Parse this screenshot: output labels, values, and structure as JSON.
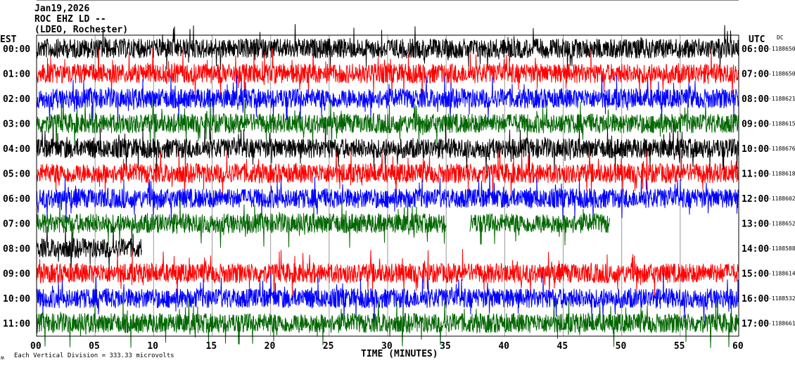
{
  "header": {
    "date": "Jan19,2026",
    "station": "ROC EHZ LD --",
    "location": "(LDEO, Rochester)"
  },
  "left_timezone": "EST",
  "right_timezone": "UTC",
  "dc_header": "DC",
  "footer": {
    "scale_note": "Each Vertical Division =  333.33 microvolts",
    "corner_mark": "ʍ"
  },
  "chart_data": {
    "type": "line",
    "xlabel": "TIME (MINUTES)",
    "xlim": [
      0,
      60
    ],
    "x_ticks": [
      "00",
      "05",
      "10",
      "15",
      "20",
      "25",
      "30",
      "35",
      "40",
      "45",
      "50",
      "55",
      "60"
    ],
    "grid": "vertical lines every 5 minutes",
    "trace_colors": [
      "#000000",
      "#ff0000",
      "#0000ff",
      "#006600"
    ],
    "traces": [
      {
        "est": "00:00",
        "utc": "06:00",
        "dc": "-1188650",
        "end_minute": 60
      },
      {
        "est": "01:00",
        "utc": "07:00",
        "dc": "-1188650",
        "end_minute": 60
      },
      {
        "est": "02:00",
        "utc": "08:00",
        "dc": "-1188621",
        "end_minute": 60
      },
      {
        "est": "03:00",
        "utc": "09:00",
        "dc": "-1188615",
        "end_minute": 60
      },
      {
        "est": "04:00",
        "utc": "10:00",
        "dc": "-1188676",
        "end_minute": 60
      },
      {
        "est": "05:00",
        "utc": "11:00",
        "dc": "-1188618",
        "end_minute": 60
      },
      {
        "est": "06:00",
        "utc": "12:00",
        "dc": "-1188602",
        "end_minute": 60
      },
      {
        "est": "07:00",
        "utc": "13:00",
        "dc": "-1188652",
        "end_minute": 49,
        "gap_minutes": [
          35,
          37
        ]
      },
      {
        "est": "08:00",
        "utc": "14:00",
        "dc": "-1188588",
        "end_minute": 9
      },
      {
        "est": "09:00",
        "utc": "15:00",
        "dc": "-1188614",
        "end_minute": 60
      },
      {
        "est": "10:00",
        "utc": "16:00",
        "dc": "-1188532",
        "end_minute": 60
      },
      {
        "est": "11:00",
        "utc": "17:00",
        "dc": "-1188661",
        "end_minute": 60
      }
    ]
  }
}
